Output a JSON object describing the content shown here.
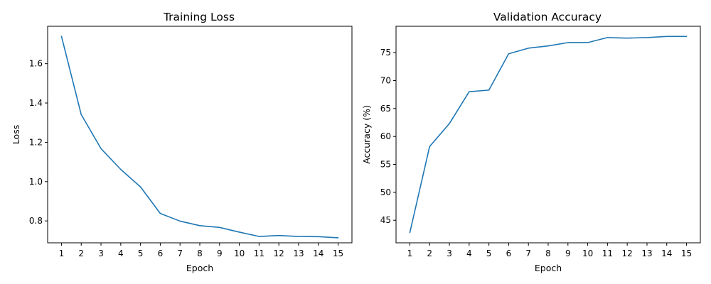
{
  "chart_data": [
    {
      "type": "line",
      "title": "Training Loss",
      "xlabel": "Epoch",
      "ylabel": "Loss",
      "x": [
        1,
        2,
        3,
        4,
        5,
        6,
        7,
        8,
        9,
        10,
        11,
        12,
        13,
        14,
        15
      ],
      "xticks": [
        1,
        2,
        3,
        4,
        5,
        6,
        7,
        8,
        9,
        10,
        11,
        12,
        13,
        14,
        15
      ],
      "xlim": [
        0.3,
        15.7
      ],
      "yticks": [
        0.8,
        1.0,
        1.2,
        1.4,
        1.6
      ],
      "ytick_decimals": 1,
      "ylim": [
        0.6886,
        1.7903
      ],
      "grid": false,
      "color": "#1f77b4",
      "series": [
        {
          "values": [
            1.739,
            1.341,
            1.168,
            1.062,
            0.973,
            0.838,
            0.799,
            0.776,
            0.767,
            0.743,
            0.721,
            0.726,
            0.721,
            0.72,
            0.714
          ]
        }
      ]
    },
    {
      "type": "line",
      "title": "Validation Accuracy",
      "xlabel": "Epoch",
      "ylabel": "Accuracy (%)",
      "x": [
        1,
        2,
        3,
        4,
        5,
        6,
        7,
        8,
        9,
        10,
        11,
        12,
        13,
        14,
        15
      ],
      "xticks": [
        1,
        2,
        3,
        4,
        5,
        6,
        7,
        8,
        9,
        10,
        11,
        12,
        13,
        14,
        15
      ],
      "xlim": [
        0.3,
        15.7
      ],
      "yticks": [
        45,
        50,
        55,
        60,
        65,
        70,
        75
      ],
      "ytick_decimals": 0,
      "ylim": [
        40.96,
        79.72
      ],
      "grid": false,
      "color": "#1f77b4",
      "series": [
        {
          "values": [
            42.8,
            58.2,
            62.3,
            68.0,
            68.3,
            74.8,
            75.8,
            76.2,
            76.8,
            76.8,
            77.7,
            77.6,
            77.7,
            77.9,
            77.9
          ]
        }
      ]
    }
  ]
}
